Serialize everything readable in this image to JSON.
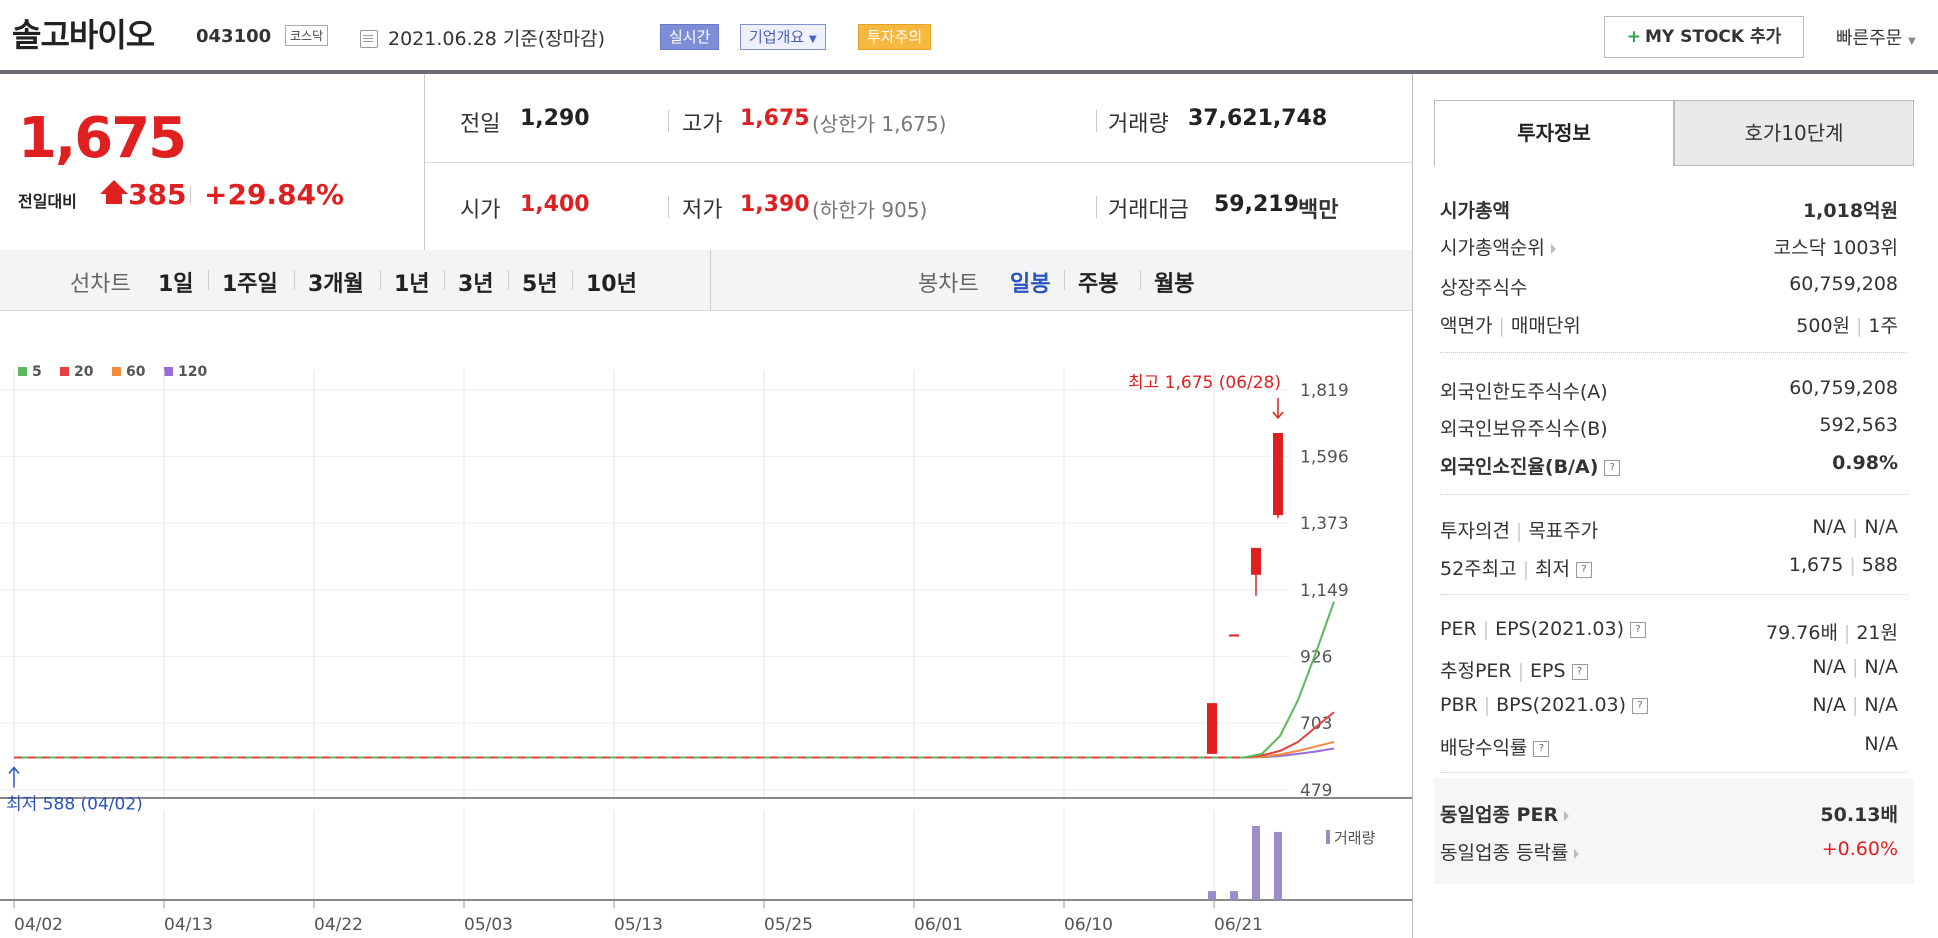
{
  "header": {
    "stock_name": "솔고바이오",
    "stock_code": "043100",
    "market_tag": "코스닥",
    "date_text": "2021.06.28 기준(장마감)",
    "badge_live": "실시간",
    "badge_company": "기업개요",
    "badge_warning": "투자주의",
    "mystock_label": "MY STOCK 추가",
    "quick_order_label": "빠른주문"
  },
  "price": {
    "current": "1,675",
    "diff_label": "전일대비",
    "diff_value": "385",
    "diff_percent": "+29.84%",
    "rows": {
      "prev_label": "전일",
      "prev_value": "1,290",
      "high_label": "고가",
      "high_value": "1,675",
      "high_sub": "(상한가 1,675)",
      "volume_label": "거래량",
      "volume_value": "37,621,748",
      "open_label": "시가",
      "open_value": "1,400",
      "low_label": "저가",
      "low_value": "1,390",
      "low_sub": "(하한가 905)",
      "amount_label": "거래대금",
      "amount_value": "59,219",
      "amount_unit": "백만"
    }
  },
  "periods": {
    "line_label": "선차트",
    "line_items": [
      "1일",
      "1주일",
      "3개월",
      "1년",
      "3년",
      "5년",
      "10년"
    ],
    "candle_label": "봉차트",
    "candle_items": [
      "일봉",
      "주봉",
      "월봉"
    ],
    "active_candle": "일봉"
  },
  "chart_data": {
    "type": "candlestick",
    "legend": [
      {
        "name": "5",
        "color": "#5cb85c"
      },
      {
        "name": "20",
        "color": "#e64040"
      },
      {
        "name": "60",
        "color": "#f08c3c"
      },
      {
        "name": "120",
        "color": "#9b6bd6"
      }
    ],
    "y_ticks": [
      1819,
      1596,
      1373,
      1149,
      926,
      703,
      479
    ],
    "ylim": [
      479,
      1819
    ],
    "x_ticks": [
      "04/02",
      "04/13",
      "04/22",
      "05/03",
      "05/13",
      "05/25",
      "06/01",
      "06/10",
      "06/21"
    ],
    "high_annotation": "최고 1,675 (06/28)",
    "low_annotation": "최저 588 (04/02)",
    "baseline_price": 588,
    "candles": [
      {
        "date": "06/23",
        "open": 600,
        "close": 770,
        "high": 770,
        "low": 600
      },
      {
        "date": "06/24",
        "open": 1000,
        "close": 1000,
        "high": 1000,
        "low": 1000
      },
      {
        "date": "06/25",
        "open": 1290,
        "close": 1200,
        "high": 1290,
        "low": 1130
      },
      {
        "date": "06/28",
        "open": 1400,
        "close": 1675,
        "high": 1675,
        "low": 1390
      }
    ],
    "ma5_tail": [
      588,
      600,
      660,
      780,
      940,
      1110
    ],
    "ma20_tail": [
      588,
      595,
      610,
      640,
      690,
      740
    ],
    "ma60_tail": [
      588,
      590,
      598,
      610,
      625,
      640
    ],
    "ma120_tail": [
      588,
      589,
      593,
      600,
      608,
      618
    ],
    "volume_label": "거래량",
    "volume_bars": [
      0.12,
      0.12,
      1.0,
      0.92
    ]
  },
  "right_panel": {
    "tab_active": "투자정보",
    "tab_inactive": "호가10단계",
    "g1": [
      {
        "label": "시가총액",
        "value": "1,018억원",
        "bold": true
      },
      {
        "label": "시가총액순위",
        "value": "코스닥 1003위"
      },
      {
        "label": "상장주식수",
        "value": "60,759,208"
      },
      {
        "label": "액면가",
        "label2": "매매단위",
        "value": "500원",
        "value2": "1주"
      }
    ],
    "g2": [
      {
        "label": "외국인한도주식수(A)",
        "value": "60,759,208"
      },
      {
        "label": "외국인보유주식수(B)",
        "value": "592,563"
      },
      {
        "label": "외국인소진율(B/A)",
        "value": "0.98%",
        "bold": true
      }
    ],
    "g3": [
      {
        "label": "투자의견",
        "label2": "목표주가",
        "value": "N/A",
        "value2": "N/A"
      },
      {
        "label": "52주최고",
        "label2": "최저",
        "value": "1,675",
        "value2": "588"
      }
    ],
    "g4": [
      {
        "label": "PER",
        "label2": "EPS(2021.03)",
        "value": "79.76배",
        "value2": "21원"
      },
      {
        "label": "추정PER",
        "label2": "EPS",
        "value": "N/A",
        "value2": "N/A"
      },
      {
        "label": "PBR",
        "label2": "BPS(2021.03)",
        "value": "N/A",
        "value2": "N/A"
      },
      {
        "label": "배당수익률",
        "value": "N/A"
      }
    ],
    "g5": [
      {
        "label": "동일업종 PER",
        "value": "50.13배",
        "bold": true
      },
      {
        "label": "동일업종 등락률",
        "value": "+0.60%",
        "red": true
      }
    ]
  }
}
